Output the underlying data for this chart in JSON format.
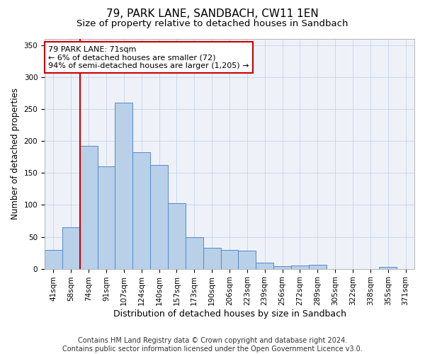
{
  "title": "79, PARK LANE, SANDBACH, CW11 1EN",
  "subtitle": "Size of property relative to detached houses in Sandbach",
  "xlabel": "Distribution of detached houses by size in Sandbach",
  "ylabel": "Number of detached properties",
  "categories": [
    "41sqm",
    "58sqm",
    "74sqm",
    "91sqm",
    "107sqm",
    "124sqm",
    "140sqm",
    "157sqm",
    "173sqm",
    "190sqm",
    "206sqm",
    "223sqm",
    "239sqm",
    "256sqm",
    "272sqm",
    "289sqm",
    "305sqm",
    "322sqm",
    "338sqm",
    "355sqm",
    "371sqm"
  ],
  "values": [
    30,
    65,
    193,
    160,
    260,
    183,
    163,
    103,
    50,
    33,
    30,
    28,
    10,
    4,
    5,
    6,
    0,
    0,
    0,
    3,
    0
  ],
  "bar_color": "#b8d0e8",
  "bar_edge_color": "#5588cc",
  "vline_color": "#cc0000",
  "annotation_text": "79 PARK LANE: 71sqm\n← 6% of detached houses are smaller (72)\n94% of semi-detached houses are larger (1,205) →",
  "annotation_box_color": "#ffffff",
  "annotation_box_edge_color": "#cc0000",
  "ylim": [
    0,
    360
  ],
  "yticks": [
    0,
    50,
    100,
    150,
    200,
    250,
    300,
    350
  ],
  "footer": "Contains HM Land Registry data © Crown copyright and database right 2024.\nContains public sector information licensed under the Open Government Licence v3.0.",
  "title_fontsize": 11,
  "subtitle_fontsize": 9.5,
  "xlabel_fontsize": 9,
  "ylabel_fontsize": 8.5,
  "tick_fontsize": 7.5,
  "footer_fontsize": 7,
  "background_color": "#eef2f8"
}
